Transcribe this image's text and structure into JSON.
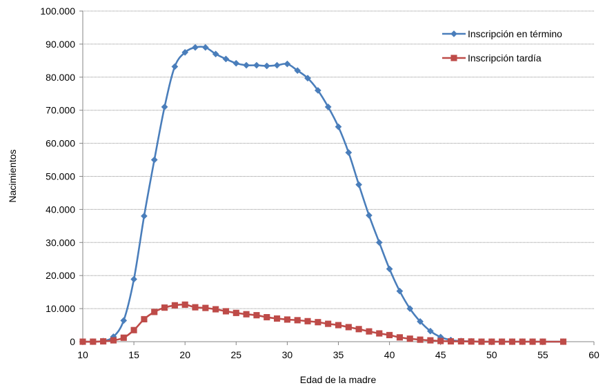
{
  "chart_data": {
    "type": "line",
    "title": "",
    "xlabel": "Edad de la madre",
    "ylabel": "Nacimientos",
    "xlim": [
      10,
      60
    ],
    "ylim": [
      0,
      100000
    ],
    "x_ticks": [
      10,
      15,
      20,
      25,
      30,
      35,
      40,
      45,
      50,
      55,
      60
    ],
    "y_ticks": [
      0,
      10000,
      20000,
      30000,
      40000,
      50000,
      60000,
      70000,
      80000,
      90000,
      100000
    ],
    "x_tick_labels": [
      "10",
      "15",
      "20",
      "25",
      "30",
      "35",
      "40",
      "45",
      "50",
      "55",
      "60"
    ],
    "y_tick_labels": [
      "0",
      "10.000",
      "20.000",
      "30.000",
      "40.000",
      "50.000",
      "60.000",
      "70.000",
      "80.000",
      "90.000",
      "100.000"
    ],
    "grid": "horizontal",
    "legend_position": "top-right",
    "series": [
      {
        "name": "Inscripción en término",
        "color": "#4a7ebb",
        "marker": "diamond",
        "x": [
          10,
          11,
          12,
          13,
          14,
          15,
          16,
          17,
          18,
          19,
          20,
          21,
          22,
          23,
          24,
          25,
          26,
          27,
          28,
          29,
          30,
          31,
          32,
          33,
          34,
          35,
          36,
          37,
          38,
          39,
          40,
          41,
          42,
          43,
          44,
          45,
          46,
          47,
          48,
          49,
          50,
          51,
          52,
          53,
          54,
          55,
          57
        ],
        "y": [
          0,
          0,
          200,
          1500,
          6400,
          18900,
          38000,
          55000,
          71000,
          83200,
          87500,
          89000,
          89000,
          87000,
          85500,
          84200,
          83600,
          83600,
          83400,
          83600,
          84000,
          82000,
          79700,
          76000,
          71000,
          65000,
          57200,
          47500,
          38200,
          30000,
          22000,
          15300,
          10000,
          6100,
          3200,
          1400,
          500,
          200,
          100,
          0,
          0,
          0,
          0,
          0,
          0,
          0,
          0
        ]
      },
      {
        "name": "Inscripción tardía",
        "color": "#be4b48",
        "marker": "square",
        "x": [
          10,
          11,
          12,
          13,
          14,
          15,
          16,
          17,
          18,
          19,
          20,
          21,
          22,
          23,
          24,
          25,
          26,
          27,
          28,
          29,
          30,
          31,
          32,
          33,
          34,
          35,
          36,
          37,
          38,
          39,
          40,
          41,
          42,
          43,
          44,
          45,
          46,
          47,
          48,
          49,
          50,
          51,
          52,
          53,
          54,
          55,
          57
        ],
        "y": [
          0,
          0,
          100,
          400,
          1200,
          3500,
          6800,
          9000,
          10300,
          11000,
          11200,
          10400,
          10200,
          9800,
          9200,
          8700,
          8300,
          8000,
          7400,
          7000,
          6700,
          6500,
          6200,
          5900,
          5400,
          5000,
          4400,
          3800,
          3100,
          2500,
          2000,
          1300,
          900,
          600,
          400,
          200,
          100,
          100,
          50,
          0,
          0,
          0,
          0,
          0,
          0,
          0,
          0
        ]
      }
    ]
  }
}
